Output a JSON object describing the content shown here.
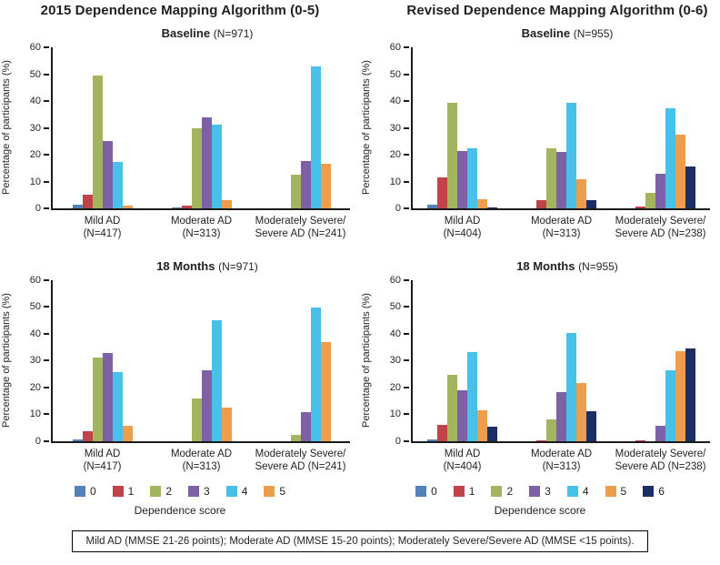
{
  "footnote": "Mild AD (MMSE 21-26 points); Moderate AD (MMSE 15-20 points); Moderately Severe/Severe AD (MMSE <15 points).",
  "chart_data": {
    "type": "bar",
    "ylabel": "Percentage of participants (%)",
    "ylim": [
      0,
      60
    ],
    "yticks": [
      0,
      10,
      20,
      30,
      40,
      50,
      60
    ],
    "grid": false,
    "legend_position": "bottom",
    "legend_title": "Dependence score",
    "colors": {
      "0": "#5581b9",
      "1": "#c2424c",
      "2": "#a2b45e",
      "3": "#7d60a5",
      "4": "#47c1ea",
      "5": "#ee9d4d",
      "6": "#1b2e66",
      "axis": "#1a1a1a"
    },
    "columns": [
      {
        "title": "2015 Dependence Mapping Algorithm (0-5)",
        "scores": [
          "0",
          "1",
          "2",
          "3",
          "4",
          "5"
        ],
        "panels": [
          {
            "subtitle": "Baseline",
            "n_label": "(N=971)",
            "categories": [
              [
                "Mild AD",
                "(N=417)"
              ],
              [
                "Moderate AD",
                "(N=313)"
              ],
              [
                "Moderately Severe/",
                "Severe AD (N=241)"
              ]
            ],
            "series": [
              {
                "name": "0",
                "values": [
                  1.2,
                  0.3,
                  0
                ]
              },
              {
                "name": "1",
                "values": [
                  5.0,
                  1.0,
                  0
                ]
              },
              {
                "name": "2",
                "values": [
                  49.4,
                  29.8,
                  12.4
                ]
              },
              {
                "name": "3",
                "values": [
                  25.2,
                  33.8,
                  17.7
                ]
              },
              {
                "name": "4",
                "values": [
                  17.2,
                  31.2,
                  52.9
                ]
              },
              {
                "name": "5",
                "values": [
                  0.9,
                  3.1,
                  16.6
                ]
              }
            ]
          },
          {
            "subtitle": "18 Months",
            "n_label": "(N=971)",
            "categories": [
              [
                "Mild AD",
                "(N=417)"
              ],
              [
                "Moderate AD",
                "(N=313)"
              ],
              [
                "Moderately Severe/",
                "Severe AD (N=241)"
              ]
            ],
            "series": [
              {
                "name": "0",
                "values": [
                  0.5,
                  0,
                  0
                ]
              },
              {
                "name": "1",
                "values": [
                  3.6,
                  0,
                  0
                ]
              },
              {
                "name": "2",
                "values": [
                  31.0,
                  16.0,
                  2.4
                ]
              },
              {
                "name": "3",
                "values": [
                  32.8,
                  26.4,
                  10.7
                ]
              },
              {
                "name": "4",
                "values": [
                  25.8,
                  45.0,
                  49.7
                ]
              },
              {
                "name": "5",
                "values": [
                  5.6,
                  12.4,
                  36.8
                ]
              }
            ]
          }
        ]
      },
      {
        "title": "Revised Dependence Mapping Algorithm (0-6)",
        "scores": [
          "0",
          "1",
          "2",
          "3",
          "4",
          "5",
          "6"
        ],
        "panels": [
          {
            "subtitle": "Baseline",
            "n_label": "(N=955)",
            "categories": [
              [
                "Mild AD",
                "(N=404)"
              ],
              [
                "Moderate AD",
                "(N=313)"
              ],
              [
                "Moderately Severe/",
                "Severe AD (N=238)"
              ]
            ],
            "series": [
              {
                "name": "0",
                "values": [
                  1.4,
                  0,
                  0
                ]
              },
              {
                "name": "1",
                "values": [
                  11.5,
                  3.1,
                  0.8
                ]
              },
              {
                "name": "2",
                "values": [
                  39.4,
                  22.4,
                  5.9
                ]
              },
              {
                "name": "3",
                "values": [
                  21.2,
                  21.1,
                  13.0
                ]
              },
              {
                "name": "4",
                "values": [
                  22.3,
                  39.3,
                  37.4
                ]
              },
              {
                "name": "5",
                "values": [
                  3.4,
                  10.9,
                  27.3
                ]
              },
              {
                "name": "6",
                "values": [
                  0.3,
                  3.1,
                  15.5
                ]
              }
            ]
          },
          {
            "subtitle": "18 Months",
            "n_label": "(N=955)",
            "categories": [
              [
                "Mild AD",
                "(N=404)"
              ],
              [
                "Moderate AD",
                "(N=313)"
              ],
              [
                "Moderately Severe/",
                "Severe AD (N=238)"
              ]
            ],
            "series": [
              {
                "name": "0",
                "values": [
                  0.5,
                  0,
                  0
                ]
              },
              {
                "name": "1",
                "values": [
                  6.0,
                  0.4,
                  0.4
                ]
              },
              {
                "name": "2",
                "values": [
                  24.8,
                  8.0,
                  0
                ]
              },
              {
                "name": "3",
                "values": [
                  18.9,
                  18.2,
                  5.6
                ]
              },
              {
                "name": "4",
                "values": [
                  33.2,
                  40.3,
                  26.2
                ]
              },
              {
                "name": "5",
                "values": [
                  11.3,
                  21.6,
                  33.6
                ]
              },
              {
                "name": "6",
                "values": [
                  5.2,
                  11.2,
                  34.5
                ]
              }
            ]
          }
        ]
      }
    ]
  }
}
